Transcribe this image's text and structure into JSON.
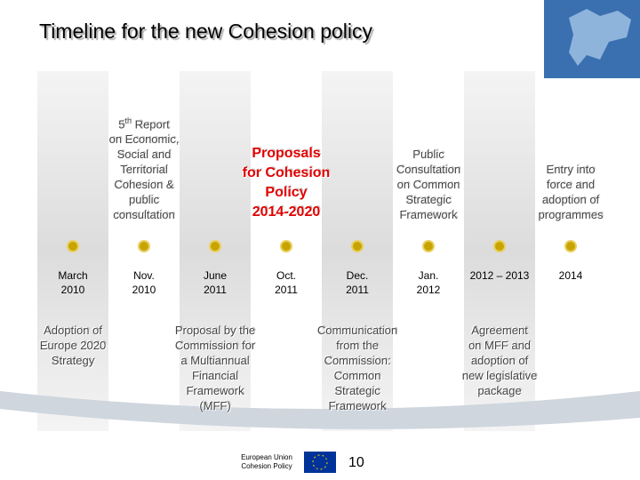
{
  "header": {
    "title": "Timeline for the new Cohesion policy"
  },
  "timeline": [
    {
      "date": [
        "March",
        "2010"
      ],
      "bottom": [
        "Adoption of",
        "Europe 2020",
        "Strategy"
      ]
    },
    {
      "date": [
        "Nov.",
        "2010"
      ],
      "top": {
        "ordinal": "5",
        "suffix": "th",
        "lines": [
          " Report",
          "on Economic,",
          "Social and",
          "Territorial",
          "Cohesion &",
          "public",
          "consultation"
        ]
      }
    },
    {
      "date": [
        "June",
        "2011"
      ],
      "bottom": [
        "Proposal by the",
        "Commission for",
        "a Multiannual",
        "Financial",
        "Framework",
        "(MFF)"
      ]
    },
    {
      "date": [
        "Oct.",
        "2011"
      ],
      "top": {
        "color": "#e00000",
        "lines": [
          "Proposals",
          "for Cohesion",
          "Policy",
          "2014-2020"
        ]
      }
    },
    {
      "date": [
        "Dec.",
        "2011"
      ],
      "bottom": [
        "Communication",
        "from the",
        "Commission:",
        "Common",
        "Strategic",
        "Framework"
      ]
    },
    {
      "date": [
        "Jan.",
        "2012"
      ],
      "top": {
        "lines": [
          "Public",
          "Consultation",
          "on Common",
          "Strategic",
          "Framework"
        ]
      }
    },
    {
      "date": [
        "2012 – 2013"
      ],
      "bottom": [
        "Agreement",
        "on MFF and",
        "adoption of",
        "new legislative",
        "package"
      ]
    },
    {
      "date": [
        "2014"
      ],
      "top": {
        "lines": [
          "Entry into",
          "force and",
          "adoption of",
          "programmes"
        ]
      }
    }
  ],
  "footer": {
    "logo_text": [
      "European Union",
      "Cohesion Policy"
    ],
    "page": "10"
  }
}
